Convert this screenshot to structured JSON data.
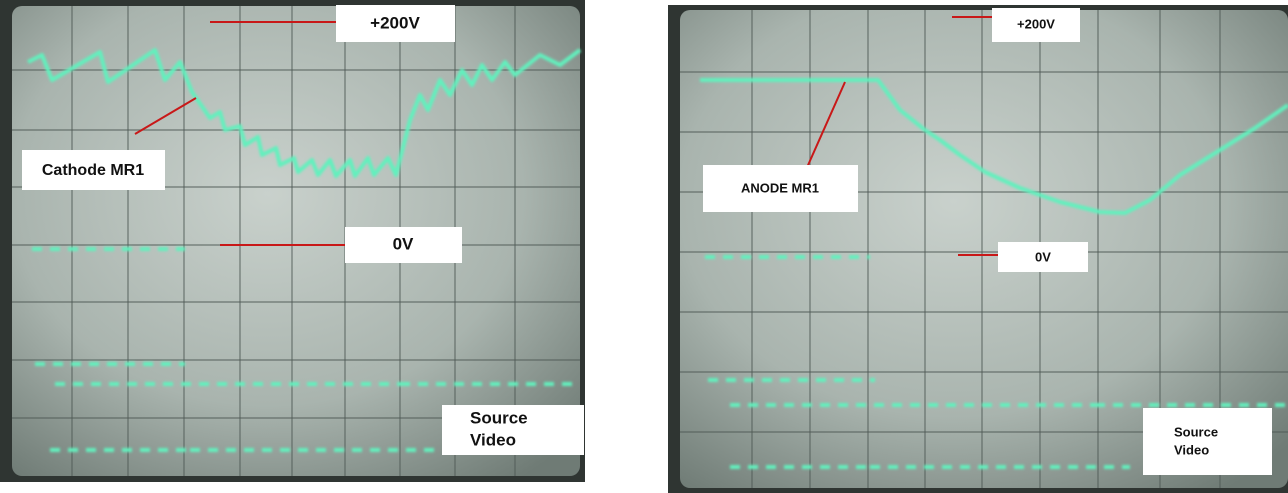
{
  "panels": [
    {
      "top_label": "+200V",
      "trace_label": "Cathode MR1",
      "zero_label": "0V",
      "bottom_label": [
        "Source",
        "Video"
      ]
    },
    {
      "top_label": "+200V",
      "trace_label": "ANODE MR1",
      "zero_label": "0V",
      "bottom_label": [
        "Source",
        "Video"
      ]
    }
  ]
}
